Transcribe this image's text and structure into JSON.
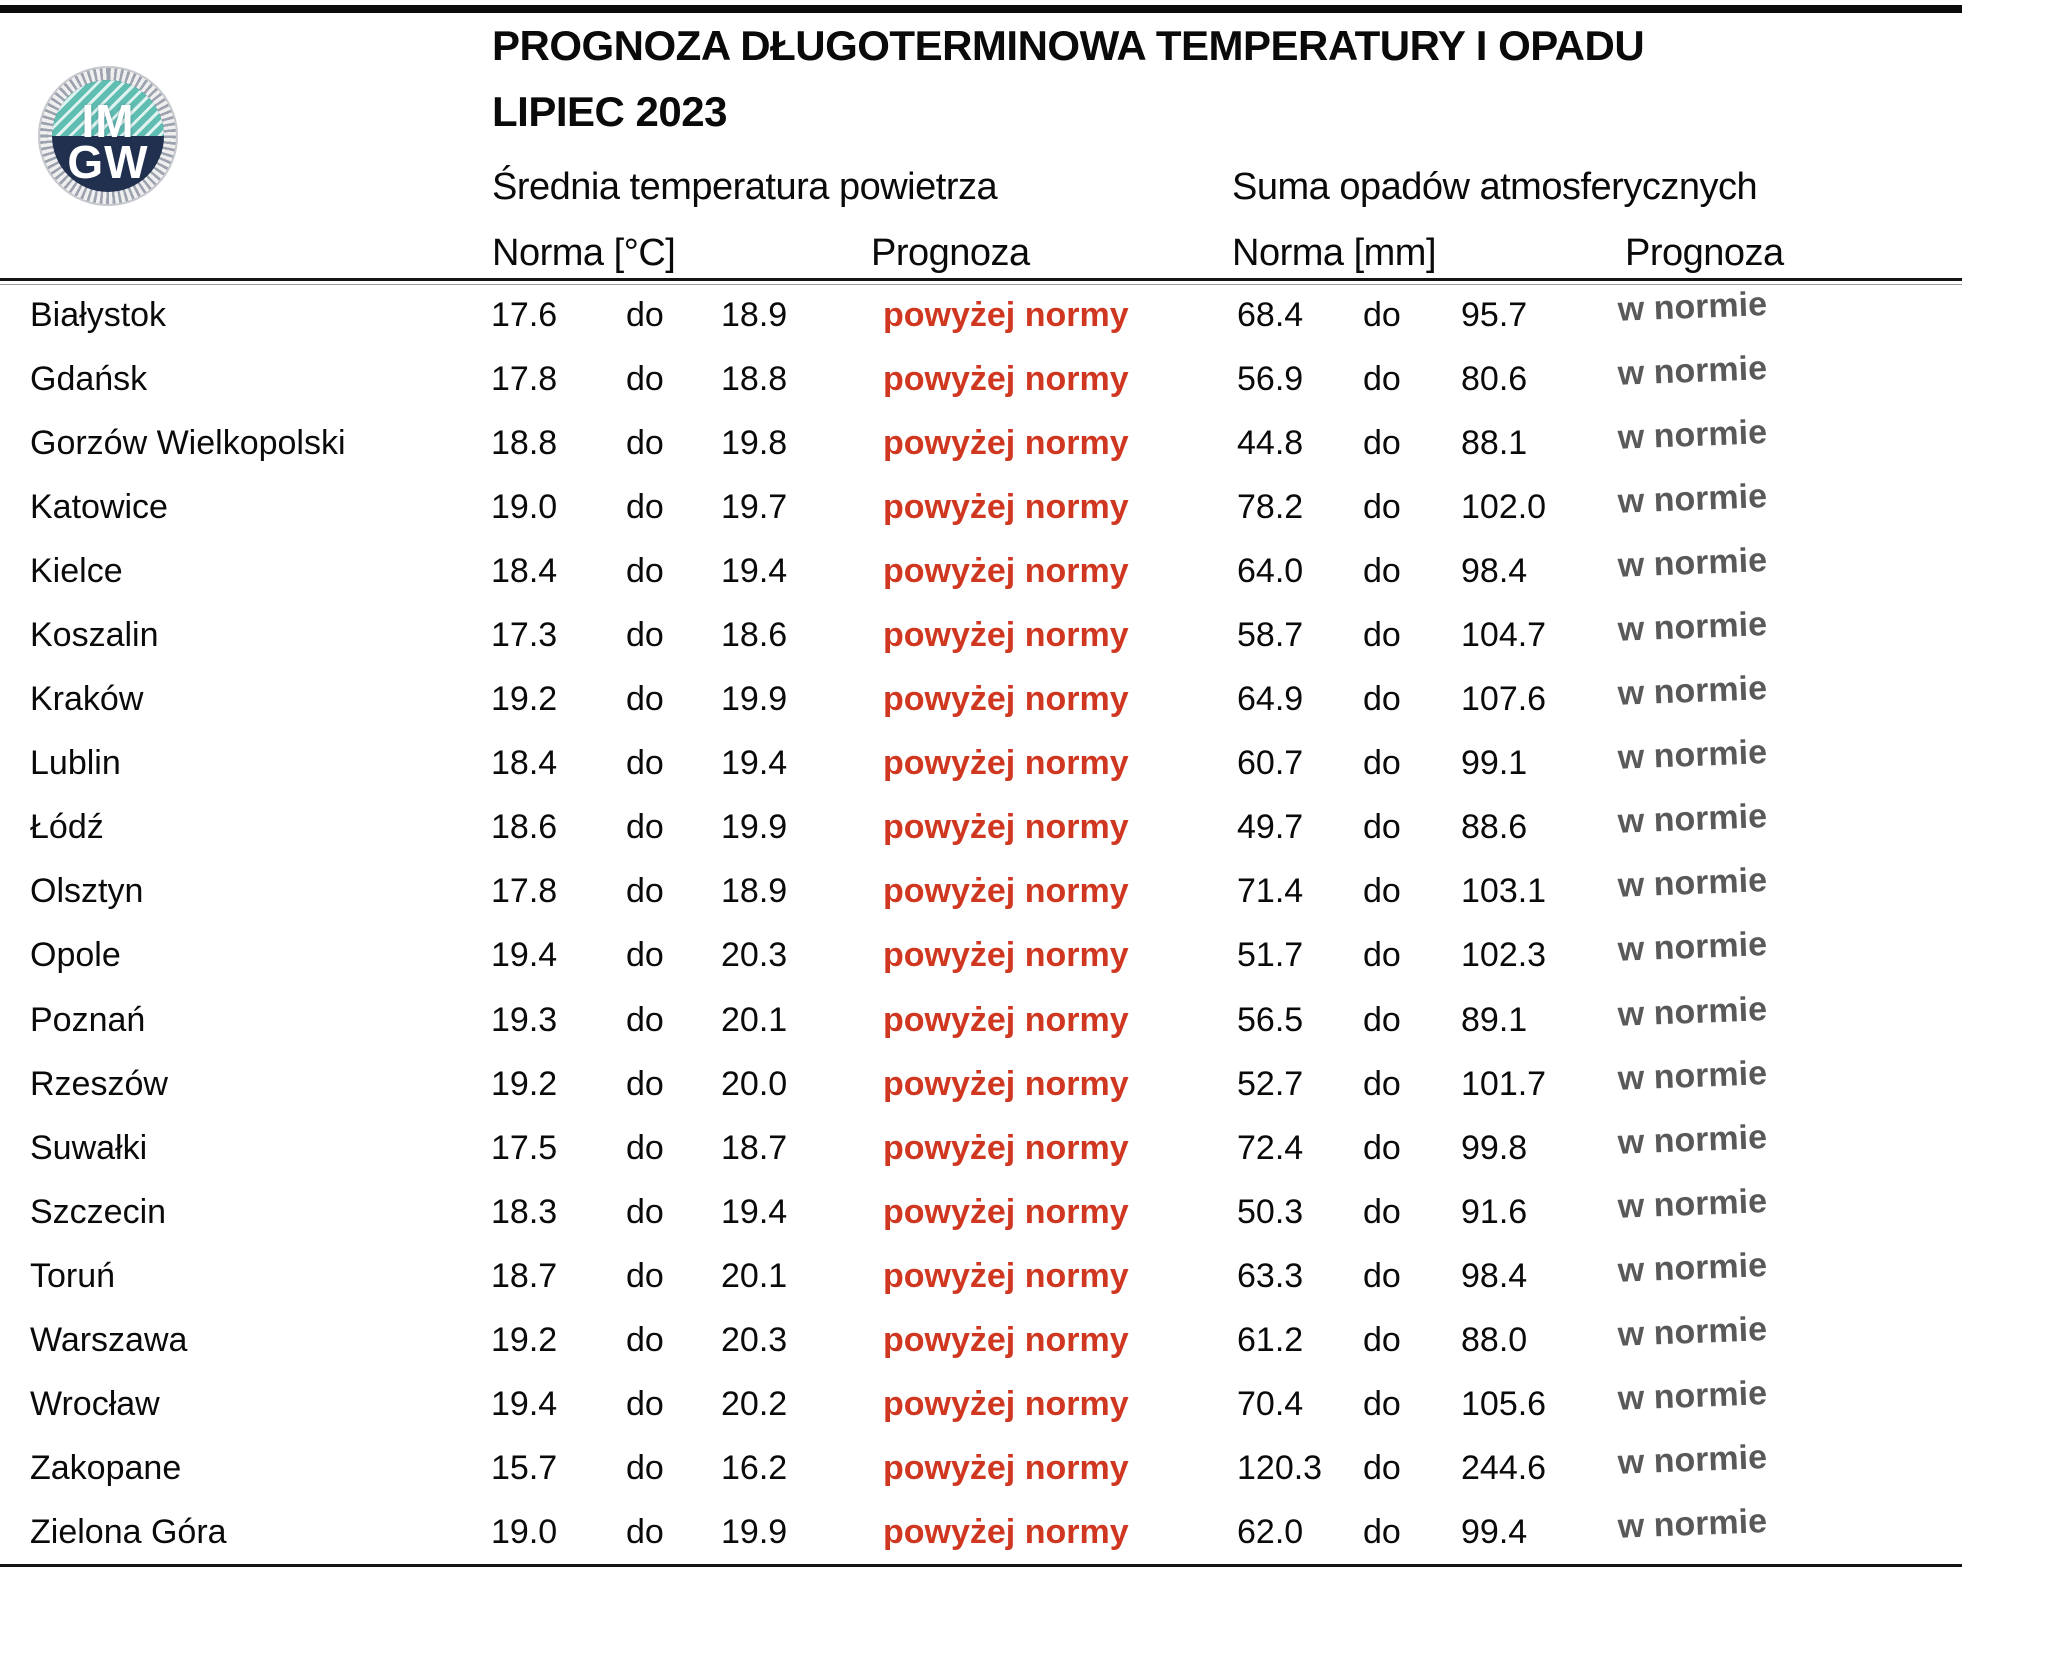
{
  "header": {
    "title": "PROGNOZA DŁUGOTERMINOWA TEMPERATURY I OPADU",
    "subtitle": "LIPIEC 2023",
    "temp_group": "Średnia temperatura powietrza",
    "precip_group": "Suma opadów atmosferycznych",
    "temp_norm_label": "Norma [°C]",
    "temp_forecast_label": "Prognoza",
    "precip_norm_label": "Norma [mm]",
    "precip_forecast_label": "Prognoza"
  },
  "logo": {
    "top_text": "IM",
    "bottom_text": "GW"
  },
  "separator": "do",
  "colors": {
    "above_norm_red": "#d03720",
    "in_norm_gray": "#595959",
    "logo_teal": "#5fbdb2",
    "logo_navy": "#20304e",
    "rule_black": "#141414"
  },
  "rows": [
    {
      "city": "Białystok",
      "t_min": "17.6",
      "t_max": "18.9",
      "t_forecast": "powyżej normy",
      "p_min": "68.4",
      "p_max": "95.7",
      "p_forecast": "w normie"
    },
    {
      "city": "Gdańsk",
      "t_min": "17.8",
      "t_max": "18.8",
      "t_forecast": "powyżej normy",
      "p_min": "56.9",
      "p_max": "80.6",
      "p_forecast": "w normie"
    },
    {
      "city": "Gorzów Wielkopolski",
      "t_min": "18.8",
      "t_max": "19.8",
      "t_forecast": "powyżej normy",
      "p_min": "44.8",
      "p_max": "88.1",
      "p_forecast": "w normie"
    },
    {
      "city": "Katowice",
      "t_min": "19.0",
      "t_max": "19.7",
      "t_forecast": "powyżej normy",
      "p_min": "78.2",
      "p_max": "102.0",
      "p_forecast": "w normie"
    },
    {
      "city": "Kielce",
      "t_min": "18.4",
      "t_max": "19.4",
      "t_forecast": "powyżej normy",
      "p_min": "64.0",
      "p_max": "98.4",
      "p_forecast": "w normie"
    },
    {
      "city": "Koszalin",
      "t_min": "17.3",
      "t_max": "18.6",
      "t_forecast": "powyżej normy",
      "p_min": "58.7",
      "p_max": "104.7",
      "p_forecast": "w normie"
    },
    {
      "city": "Kraków",
      "t_min": "19.2",
      "t_max": "19.9",
      "t_forecast": "powyżej normy",
      "p_min": "64.9",
      "p_max": "107.6",
      "p_forecast": "w normie"
    },
    {
      "city": "Lublin",
      "t_min": "18.4",
      "t_max": "19.4",
      "t_forecast": "powyżej normy",
      "p_min": "60.7",
      "p_max": "99.1",
      "p_forecast": "w normie"
    },
    {
      "city": "Łódź",
      "t_min": "18.6",
      "t_max": "19.9",
      "t_forecast": "powyżej normy",
      "p_min": "49.7",
      "p_max": "88.6",
      "p_forecast": "w normie"
    },
    {
      "city": "Olsztyn",
      "t_min": "17.8",
      "t_max": "18.9",
      "t_forecast": "powyżej normy",
      "p_min": "71.4",
      "p_max": "103.1",
      "p_forecast": "w normie"
    },
    {
      "city": "Opole",
      "t_min": "19.4",
      "t_max": "20.3",
      "t_forecast": "powyżej normy",
      "p_min": "51.7",
      "p_max": "102.3",
      "p_forecast": "w normie"
    },
    {
      "city": "Poznań",
      "t_min": "19.3",
      "t_max": "20.1",
      "t_forecast": "powyżej normy",
      "p_min": "56.5",
      "p_max": "89.1",
      "p_forecast": "w normie"
    },
    {
      "city": "Rzeszów",
      "t_min": "19.2",
      "t_max": "20.0",
      "t_forecast": "powyżej normy",
      "p_min": "52.7",
      "p_max": "101.7",
      "p_forecast": "w normie"
    },
    {
      "city": "Suwałki",
      "t_min": "17.5",
      "t_max": "18.7",
      "t_forecast": "powyżej normy",
      "p_min": "72.4",
      "p_max": "99.8",
      "p_forecast": "w normie"
    },
    {
      "city": "Szczecin",
      "t_min": "18.3",
      "t_max": "19.4",
      "t_forecast": "powyżej normy",
      "p_min": "50.3",
      "p_max": "91.6",
      "p_forecast": "w normie"
    },
    {
      "city": "Toruń",
      "t_min": "18.7",
      "t_max": "20.1",
      "t_forecast": "powyżej normy",
      "p_min": "63.3",
      "p_max": "98.4",
      "p_forecast": "w normie"
    },
    {
      "city": "Warszawa",
      "t_min": "19.2",
      "t_max": "20.3",
      "t_forecast": "powyżej normy",
      "p_min": "61.2",
      "p_max": "88.0",
      "p_forecast": "w normie"
    },
    {
      "city": "Wrocław",
      "t_min": "19.4",
      "t_max": "20.2",
      "t_forecast": "powyżej normy",
      "p_min": "70.4",
      "p_max": "105.6",
      "p_forecast": "w normie"
    },
    {
      "city": "Zakopane",
      "t_min": "15.7",
      "t_max": "16.2",
      "t_forecast": "powyżej normy",
      "p_min": "120.3",
      "p_max": "244.6",
      "p_forecast": "w normie"
    },
    {
      "city": "Zielona Góra",
      "t_min": "19.0",
      "t_max": "19.9",
      "t_forecast": "powyżej normy",
      "p_min": "62.0",
      "p_max": "99.4",
      "p_forecast": "w normie"
    }
  ]
}
